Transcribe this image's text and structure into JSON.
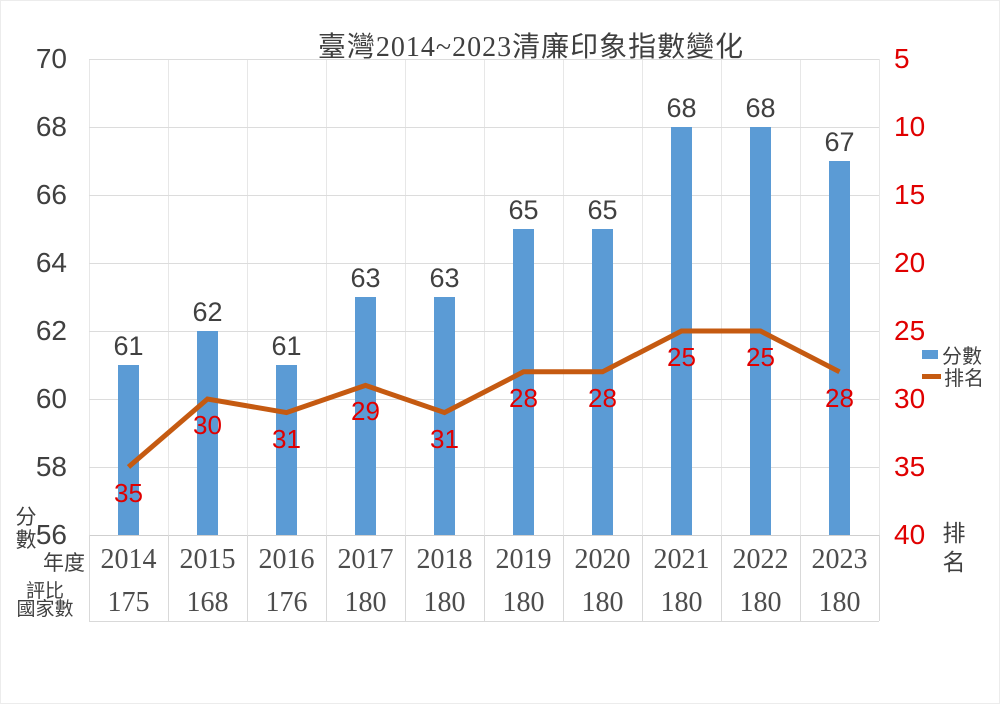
{
  "title": "臺灣2014~2023清廉印象指數變化",
  "legend": {
    "score_label": "分數",
    "rank_label": "排名"
  },
  "left_axis": {
    "title": "分數",
    "title_line1": "分",
    "title_line2": "數"
  },
  "right_axis": {
    "title": "排名",
    "title_line1": "排",
    "title_line2": "名"
  },
  "table_headers": {
    "year_label": "年度",
    "countries_label_line1": "評比",
    "countries_label_line2": "國家數"
  },
  "colors": {
    "bar": "#5b9bd5",
    "line": "#c55a11",
    "rank_text": "#e00000",
    "score_text": "#404040",
    "grid": "#dcdcdc",
    "table_border": "#d9d9d9"
  },
  "chart_data": {
    "type": "bar",
    "subtype": "combo-bar-line",
    "title": "臺灣2014~2023清廉印象指數變化",
    "categories": [
      "2014",
      "2015",
      "2016",
      "2017",
      "2018",
      "2019",
      "2020",
      "2021",
      "2022",
      "2023"
    ],
    "series": [
      {
        "name": "分數",
        "type": "bar",
        "color": "#5b9bd5",
        "values": [
          61,
          62,
          61,
          63,
          63,
          65,
          65,
          68,
          68,
          67
        ]
      },
      {
        "name": "排名",
        "type": "line",
        "color": "#c55a11",
        "values": [
          35,
          30,
          31,
          29,
          31,
          28,
          28,
          25,
          25,
          28
        ]
      }
    ],
    "countries_evaluated": [
      175,
      168,
      176,
      180,
      180,
      180,
      180,
      180,
      180,
      180
    ],
    "left_axis": {
      "label": "分數",
      "min": 56,
      "max": 70,
      "step": 2,
      "ticks": [
        70,
        68,
        66,
        64,
        62,
        60,
        58,
        56
      ]
    },
    "right_axis": {
      "label": "排名",
      "min": 5,
      "max": 40,
      "step": 5,
      "inverted": true,
      "ticks": [
        5,
        10,
        15,
        20,
        25,
        30,
        35,
        40
      ]
    },
    "grid": true,
    "legend_position": "right",
    "data_labels": true
  }
}
